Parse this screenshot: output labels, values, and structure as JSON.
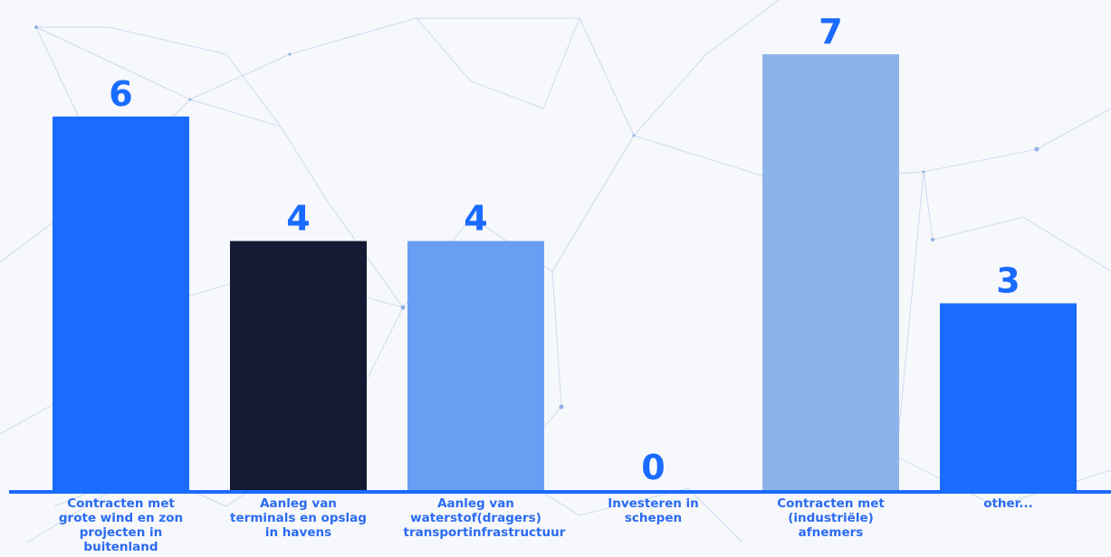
{
  "chart_data": {
    "type": "bar",
    "categories": [
      "Contracten met grote wind en zon projecten in buitenland",
      "Aanleg van terminals en opslag in havens",
      "Aanleg van waterstof(dragers) transportinfrastructuur",
      "Investeren in schepen",
      "Contracten met (industriële) afnemers",
      "other..."
    ],
    "values": [
      6,
      4,
      4,
      0,
      7,
      3
    ],
    "ylim": [
      0,
      7
    ],
    "title": "",
    "xlabel": "",
    "ylabel": "",
    "grid": false,
    "legend": "none",
    "colors": {
      "bars": [
        "#1a6bff",
        "#141a33",
        "#6a9ef3",
        "#5b8ef5",
        "#8db4e8",
        "#1a6bff"
      ],
      "value_label": "#1a6bff",
      "category_label": "#2a6bf0",
      "axis": "#1a6bff",
      "background": "#f7f8fb"
    }
  }
}
